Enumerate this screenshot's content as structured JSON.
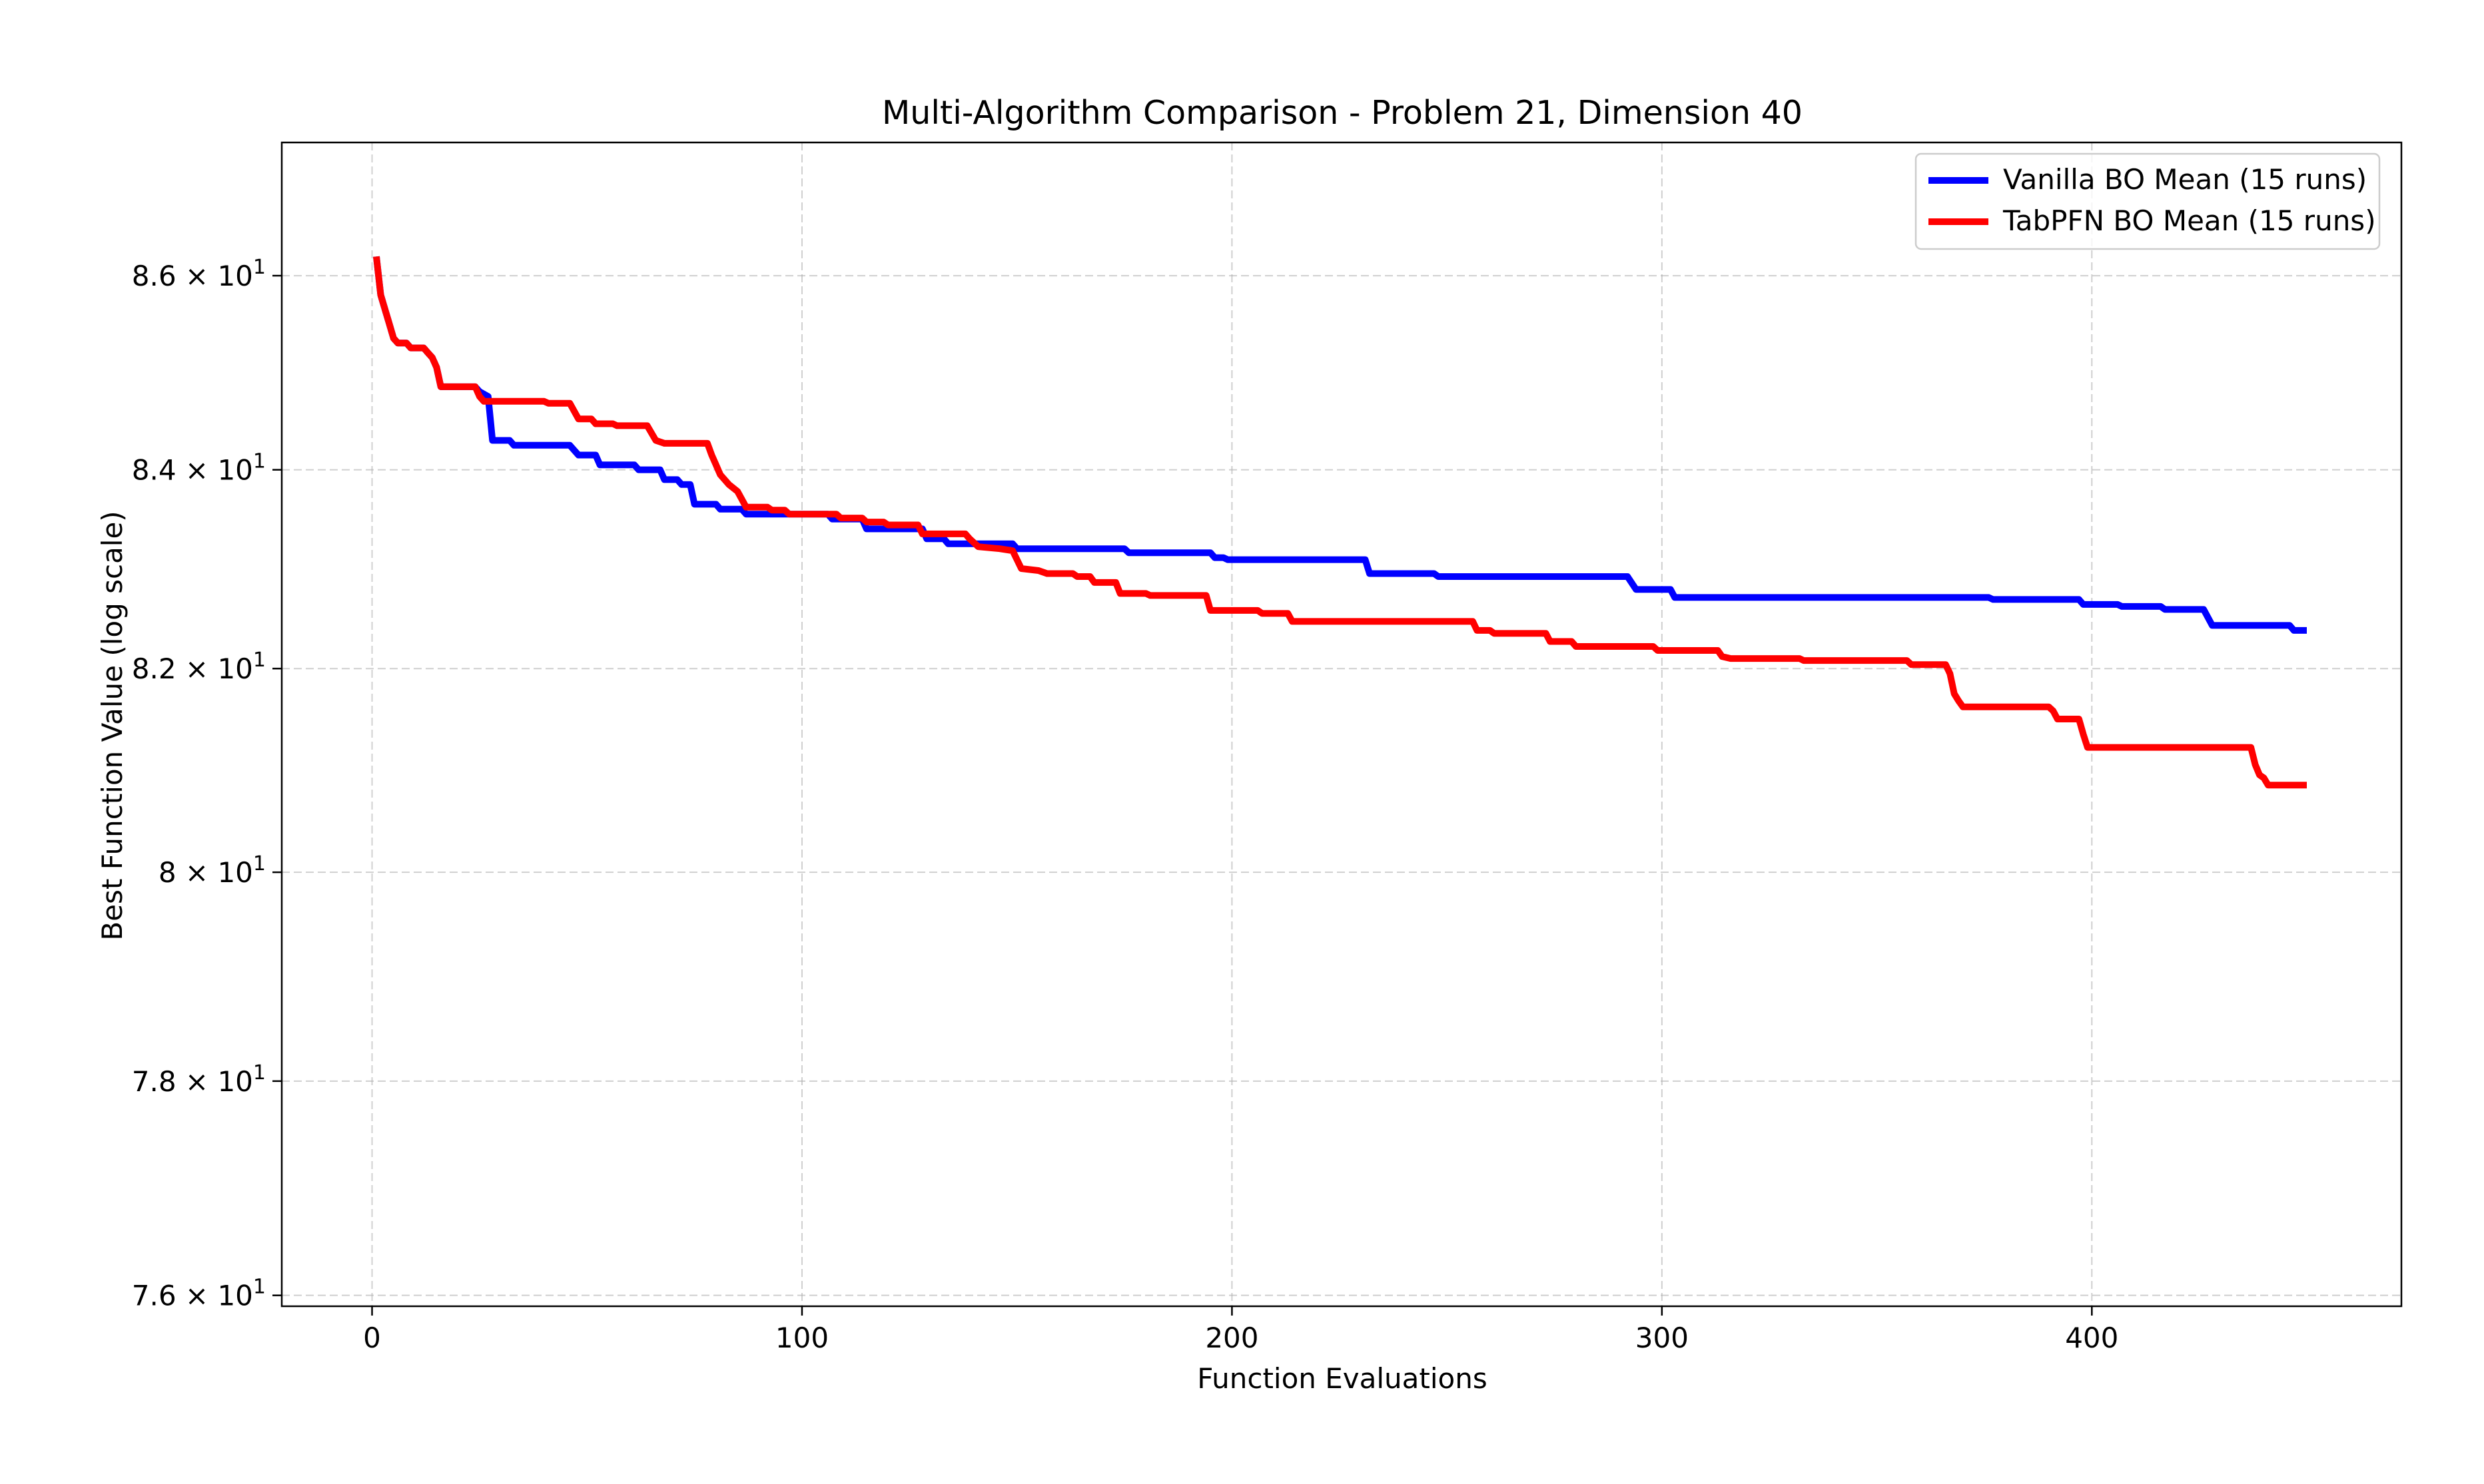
{
  "chart_data": {
    "type": "line",
    "title": "Multi-Algorithm Comparison - Problem 21, Dimension 40",
    "xlabel": "Function Evaluations",
    "ylabel": "Best Function Value (log scale)",
    "xlim": [
      -21,
      472
    ],
    "ylim": [
      75.9,
      87.4
    ],
    "yscale": "log",
    "grid": true,
    "legend_position": "top-right",
    "x_ticks": [
      0,
      100,
      200,
      300,
      400
    ],
    "x_tick_labels": [
      "0",
      "100",
      "200",
      "300",
      "400"
    ],
    "y_ticks": [
      76,
      78,
      80,
      82,
      84,
      86
    ],
    "y_tick_labels": [
      {
        "base": "7.6 × 10",
        "exp": "1"
      },
      {
        "base": "7.8 × 10",
        "exp": "1"
      },
      {
        "base": "8 × 10",
        "exp": "1"
      },
      {
        "base": "8.2 × 10",
        "exp": "1"
      },
      {
        "base": "8.4 × 10",
        "exp": "1"
      },
      {
        "base": "8.6 × 10",
        "exp": "1"
      }
    ],
    "series": [
      {
        "name": "Vanilla BO Mean (15 runs)",
        "color": "#0000ff",
        "points": [
          [
            1,
            86.2
          ],
          [
            2,
            85.8
          ],
          [
            3,
            85.65
          ],
          [
            4,
            85.5
          ],
          [
            5,
            85.35
          ],
          [
            6,
            85.3
          ],
          [
            8,
            85.3
          ],
          [
            9,
            85.25
          ],
          [
            12,
            85.25
          ],
          [
            13,
            85.2
          ],
          [
            14,
            85.15
          ],
          [
            15,
            85.05
          ],
          [
            16,
            84.85
          ],
          [
            24,
            84.85
          ],
          [
            25,
            84.8
          ],
          [
            27,
            84.75
          ],
          [
            28,
            84.3
          ],
          [
            32,
            84.3
          ],
          [
            33,
            84.25
          ],
          [
            46,
            84.25
          ],
          [
            47,
            84.2
          ],
          [
            48,
            84.15
          ],
          [
            52,
            84.15
          ],
          [
            53,
            84.05
          ],
          [
            61,
            84.05
          ],
          [
            62,
            84.0
          ],
          [
            67,
            84.0
          ],
          [
            68,
            83.9
          ],
          [
            71,
            83.9
          ],
          [
            72,
            83.85
          ],
          [
            74,
            83.85
          ],
          [
            75,
            83.65
          ],
          [
            80,
            83.65
          ],
          [
            81,
            83.6
          ],
          [
            86,
            83.6
          ],
          [
            87,
            83.55
          ],
          [
            106,
            83.55
          ],
          [
            107,
            83.5
          ],
          [
            114,
            83.5
          ],
          [
            115,
            83.4
          ],
          [
            128,
            83.4
          ],
          [
            129,
            83.3
          ],
          [
            133,
            83.3
          ],
          [
            134,
            83.25
          ],
          [
            149,
            83.25
          ],
          [
            150,
            83.2
          ],
          [
            175,
            83.2
          ],
          [
            176,
            83.16
          ],
          [
            195,
            83.16
          ],
          [
            196,
            83.11
          ],
          [
            198,
            83.11
          ],
          [
            199,
            83.09
          ],
          [
            231,
            83.09
          ],
          [
            232,
            82.95
          ],
          [
            247,
            82.95
          ],
          [
            248,
            82.92
          ],
          [
            292,
            82.92
          ],
          [
            294,
            82.79
          ],
          [
            302,
            82.79
          ],
          [
            303,
            82.71
          ],
          [
            376,
            82.71
          ],
          [
            377,
            82.69
          ],
          [
            397,
            82.69
          ],
          [
            398,
            82.64
          ],
          [
            406,
            82.64
          ],
          [
            407,
            82.62
          ],
          [
            416,
            82.62
          ],
          [
            417,
            82.59
          ],
          [
            426,
            82.59
          ],
          [
            428,
            82.43
          ],
          [
            446,
            82.43
          ],
          [
            447,
            82.38
          ],
          [
            450,
            82.38
          ]
        ]
      },
      {
        "name": "TabPFN BO Mean (15 runs)",
        "color": "#ff0000",
        "points": [
          [
            1,
            86.2
          ],
          [
            2,
            85.8
          ],
          [
            3,
            85.65
          ],
          [
            4,
            85.5
          ],
          [
            5,
            85.35
          ],
          [
            6,
            85.3
          ],
          [
            8,
            85.3
          ],
          [
            9,
            85.25
          ],
          [
            12,
            85.25
          ],
          [
            13,
            85.2
          ],
          [
            14,
            85.15
          ],
          [
            15,
            85.05
          ],
          [
            16,
            84.85
          ],
          [
            24,
            84.85
          ],
          [
            25,
            84.75
          ],
          [
            26,
            84.7
          ],
          [
            40,
            84.7
          ],
          [
            41,
            84.68
          ],
          [
            46,
            84.68
          ],
          [
            47,
            84.6
          ],
          [
            48,
            84.52
          ],
          [
            51,
            84.52
          ],
          [
            52,
            84.47
          ],
          [
            56,
            84.47
          ],
          [
            57,
            84.45
          ],
          [
            64,
            84.45
          ],
          [
            66,
            84.3
          ],
          [
            68,
            84.27
          ],
          [
            78,
            84.27
          ],
          [
            79,
            84.15
          ],
          [
            80,
            84.05
          ],
          [
            81,
            83.95
          ],
          [
            83,
            83.85
          ],
          [
            85,
            83.78
          ],
          [
            87,
            83.62
          ],
          [
            92,
            83.62
          ],
          [
            93,
            83.59
          ],
          [
            96,
            83.59
          ],
          [
            97,
            83.55
          ],
          [
            108,
            83.55
          ],
          [
            109,
            83.51
          ],
          [
            114,
            83.51
          ],
          [
            115,
            83.47
          ],
          [
            119,
            83.47
          ],
          [
            120,
            83.44
          ],
          [
            127,
            83.44
          ],
          [
            128,
            83.35
          ],
          [
            138,
            83.35
          ],
          [
            139,
            83.3
          ],
          [
            141,
            83.22
          ],
          [
            146,
            83.2
          ],
          [
            149,
            83.18
          ],
          [
            151,
            83.0
          ],
          [
            155,
            82.98
          ],
          [
            157,
            82.95
          ],
          [
            163,
            82.95
          ],
          [
            164,
            82.92
          ],
          [
            167,
            82.92
          ],
          [
            168,
            82.86
          ],
          [
            173,
            82.86
          ],
          [
            174,
            82.75
          ],
          [
            180,
            82.75
          ],
          [
            181,
            82.73
          ],
          [
            194,
            82.73
          ],
          [
            195,
            82.58
          ],
          [
            206,
            82.58
          ],
          [
            207,
            82.55
          ],
          [
            213,
            82.55
          ],
          [
            214,
            82.47
          ],
          [
            256,
            82.47
          ],
          [
            257,
            82.38
          ],
          [
            260,
            82.38
          ],
          [
            261,
            82.35
          ],
          [
            273,
            82.35
          ],
          [
            274,
            82.27
          ],
          [
            279,
            82.27
          ],
          [
            280,
            82.22
          ],
          [
            298,
            82.22
          ],
          [
            299,
            82.18
          ],
          [
            313,
            82.18
          ],
          [
            314,
            82.12
          ],
          [
            316,
            82.1
          ],
          [
            332,
            82.1
          ],
          [
            333,
            82.08
          ],
          [
            357,
            82.08
          ],
          [
            358,
            82.04
          ],
          [
            366,
            82.04
          ],
          [
            367,
            81.95
          ],
          [
            368,
            81.75
          ],
          [
            369,
            81.68
          ],
          [
            370,
            81.62
          ],
          [
            390,
            81.62
          ],
          [
            391,
            81.58
          ],
          [
            392,
            81.5
          ],
          [
            397,
            81.5
          ],
          [
            398,
            81.35
          ],
          [
            399,
            81.22
          ],
          [
            437,
            81.22
          ],
          [
            438,
            81.05
          ],
          [
            439,
            80.95
          ],
          [
            440,
            80.92
          ],
          [
            441,
            80.85
          ],
          [
            450,
            80.85
          ]
        ]
      }
    ]
  }
}
